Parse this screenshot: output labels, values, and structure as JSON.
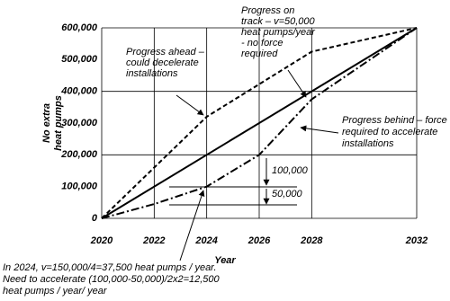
{
  "chart_data": {
    "type": "line",
    "y_label": [
      "No extra",
      "heat pumps"
    ],
    "x_label": "Year",
    "xlim": [
      2020,
      2032
    ],
    "xticks": [
      2020,
      2022,
      2024,
      2026,
      2028,
      2032
    ],
    "ylim": [
      0,
      600000
    ],
    "yticks": [
      0,
      {
        "value": 100000,
        "label": "100,000"
      },
      {
        "value": 200000,
        "label": "200,000"
      },
      {
        "value": 300000,
        "label": "300,000"
      },
      {
        "value": 400000,
        "label": "400,000"
      },
      {
        "value": 500000,
        "label": "500,000"
      },
      {
        "value": 600000,
        "label": "600,000"
      }
    ],
    "ygrid": [
      0,
      200000,
      400000,
      600000
    ],
    "grid": true,
    "series": [
      {
        "color": "#000000",
        "style": "dashed",
        "x": [
          2020,
          2024,
          2028,
          2032
        ],
        "values": [
          0,
          320000,
          525000,
          600000
        ]
      },
      {
        "color": "#000000",
        "style": "solid",
        "x": [
          2020,
          2032
        ],
        "values": [
          0,
          600000
        ]
      },
      {
        "color": "#000000",
        "style": "dashdot",
        "x": [
          2020,
          2022,
          2024,
          2026,
          2028,
          2032
        ],
        "values": [
          0,
          45000,
          100000,
          200000,
          375000,
          600000
        ]
      }
    ],
    "annotations": [
      [
        "Progress ahead –",
        "could decelerate",
        "installations"
      ],
      [
        "Progress on",
        "track – v=50,000",
        "heat pumps/year",
        "- no force",
        "required"
      ],
      [
        "Progress behind – force",
        "required to accelerate",
        "installations"
      ],
      [
        "100,000"
      ],
      [
        "50,000"
      ],
      [
        "In 2024, v=150,000/4=37,500 heat pumps / year.",
        "Need to accelerate (100,000-50,000)/2x2=12,500",
        "heat pumps / year/ year"
      ]
    ]
  }
}
